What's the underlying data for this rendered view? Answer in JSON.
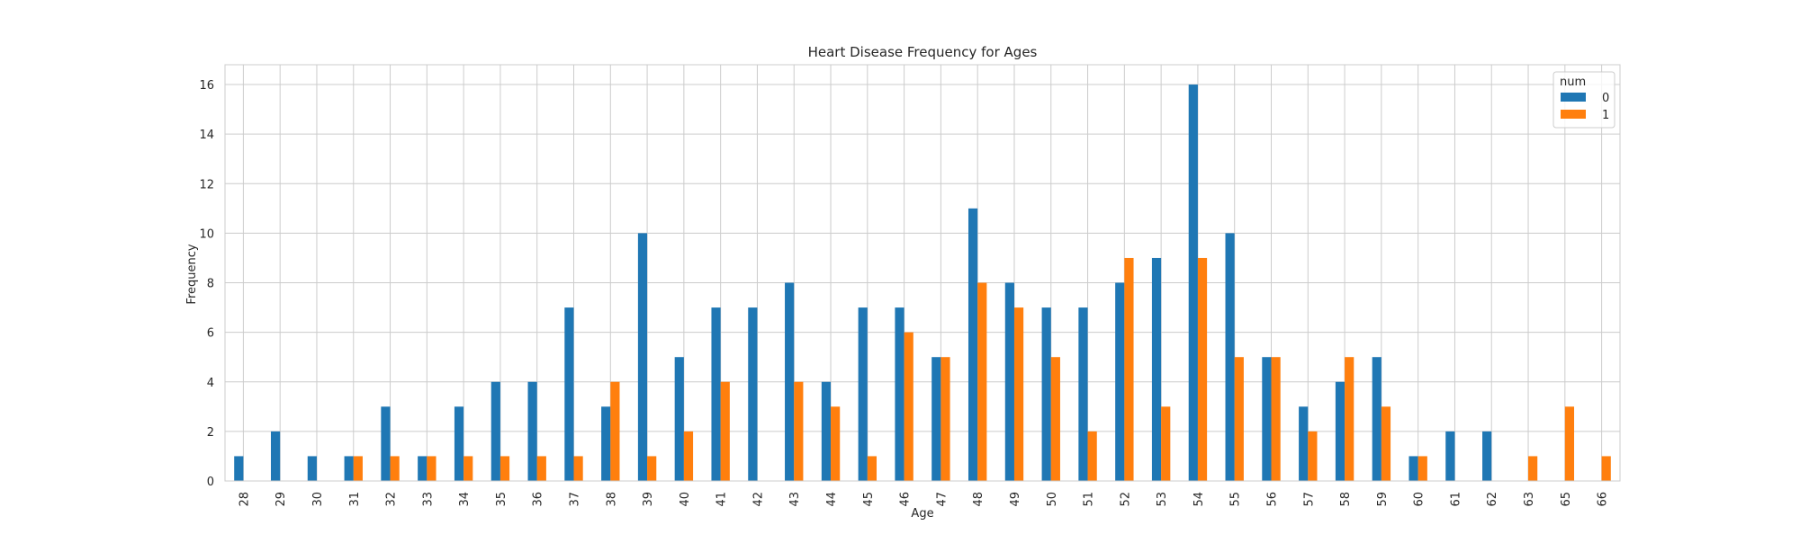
{
  "chart_data": {
    "type": "bar",
    "title": "Heart Disease Frequency for Ages",
    "xlabel": "Age",
    "ylabel": "Frequency",
    "ylim": [
      0,
      16.8
    ],
    "yticks": [
      0,
      2,
      4,
      6,
      8,
      10,
      12,
      14,
      16
    ],
    "grid": true,
    "legend": {
      "title": "num",
      "placement": "top-right"
    },
    "categories": [
      "28",
      "29",
      "30",
      "31",
      "32",
      "33",
      "34",
      "35",
      "36",
      "37",
      "38",
      "39",
      "40",
      "41",
      "42",
      "43",
      "44",
      "45",
      "46",
      "47",
      "48",
      "49",
      "50",
      "51",
      "52",
      "53",
      "54",
      "55",
      "56",
      "57",
      "58",
      "59",
      "60",
      "61",
      "62",
      "63",
      "65",
      "66"
    ],
    "series": [
      {
        "name": "0",
        "color": "#1f77b4",
        "values": [
          1,
          2,
          1,
          1,
          3,
          1,
          3,
          4,
          4,
          7,
          3,
          10,
          5,
          7,
          7,
          8,
          4,
          7,
          7,
          5,
          11,
          8,
          7,
          7,
          8,
          9,
          16,
          10,
          5,
          3,
          4,
          5,
          1,
          2,
          2,
          0,
          0,
          0
        ]
      },
      {
        "name": "1",
        "color": "#ff7f0e",
        "values": [
          0,
          0,
          0,
          1,
          1,
          1,
          1,
          1,
          1,
          1,
          4,
          1,
          2,
          4,
          0,
          4,
          3,
          1,
          6,
          5,
          8,
          7,
          5,
          2,
          9,
          3,
          9,
          5,
          5,
          2,
          5,
          3,
          1,
          0,
          0,
          1,
          3,
          1
        ]
      }
    ]
  }
}
